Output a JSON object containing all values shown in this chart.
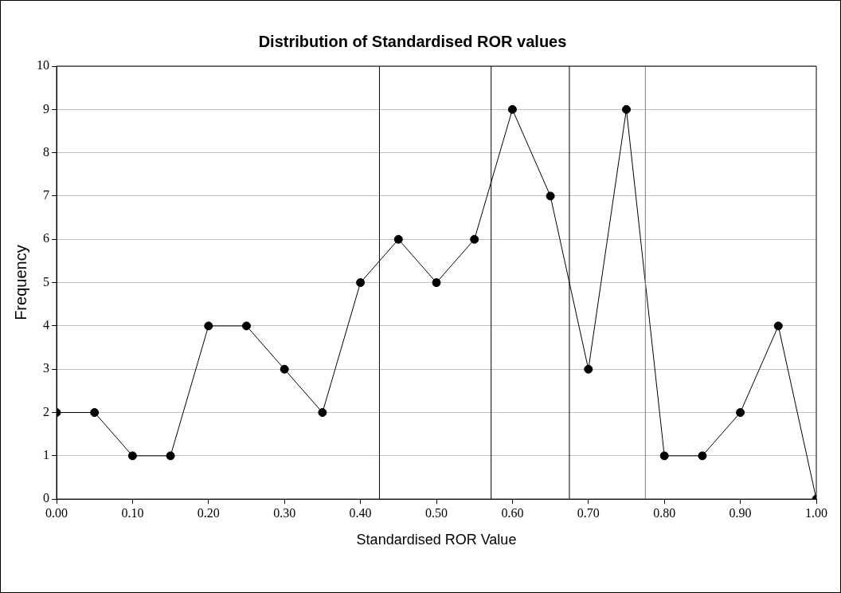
{
  "chart_data": {
    "type": "line",
    "title": "Distribution of Standardised ROR values",
    "xlabel": "Standardised ROR Value",
    "ylabel": "Frequency",
    "x": [
      0,
      0.05,
      0.1,
      0.15,
      0.2,
      0.25,
      0.3,
      0.35,
      0.4,
      0.45,
      0.5,
      0.55,
      0.6,
      0.65,
      0.7,
      0.75,
      0.8,
      0.85,
      0.9,
      0.95,
      1
    ],
    "series": [
      {
        "color": "#000000",
        "values": [
          2,
          2,
          1,
          1,
          4,
          4,
          3,
          2,
          5,
          6,
          5,
          6,
          9,
          7,
          3,
          9,
          1,
          1,
          2,
          4,
          0
        ]
      }
    ],
    "xlim": [
      0,
      1
    ],
    "xticks": [
      {
        "value": 0,
        "label": "0.00"
      },
      {
        "value": 0.1,
        "label": "0.10"
      },
      {
        "value": 0.2,
        "label": "0.20"
      },
      {
        "value": 0.3,
        "label": "0.30"
      },
      {
        "value": 0.4,
        "label": "0.40"
      },
      {
        "value": 0.5,
        "label": "0.50"
      },
      {
        "value": 0.6,
        "label": "0.60"
      },
      {
        "value": 0.7,
        "label": "0.70"
      },
      {
        "value": 0.8,
        "label": "0.80"
      },
      {
        "value": 0.9,
        "label": "0.90"
      },
      {
        "value": 1,
        "label": "1.00"
      }
    ],
    "ylim": [
      0,
      10
    ],
    "yticks": [
      0,
      1,
      2,
      3,
      4,
      5,
      6,
      7,
      8,
      9,
      10
    ],
    "grid": "y",
    "legend": false,
    "marker": "circle",
    "line_style": "solid",
    "ref_lines": [
      {
        "axis": "x",
        "value": 0.425,
        "color": "#000000"
      },
      {
        "axis": "x",
        "value": 0.572,
        "color": "#000000"
      },
      {
        "axis": "x",
        "value": 0.675,
        "color": "#000000"
      },
      {
        "axis": "x",
        "value": 0.775,
        "color": "#808080"
      }
    ]
  }
}
